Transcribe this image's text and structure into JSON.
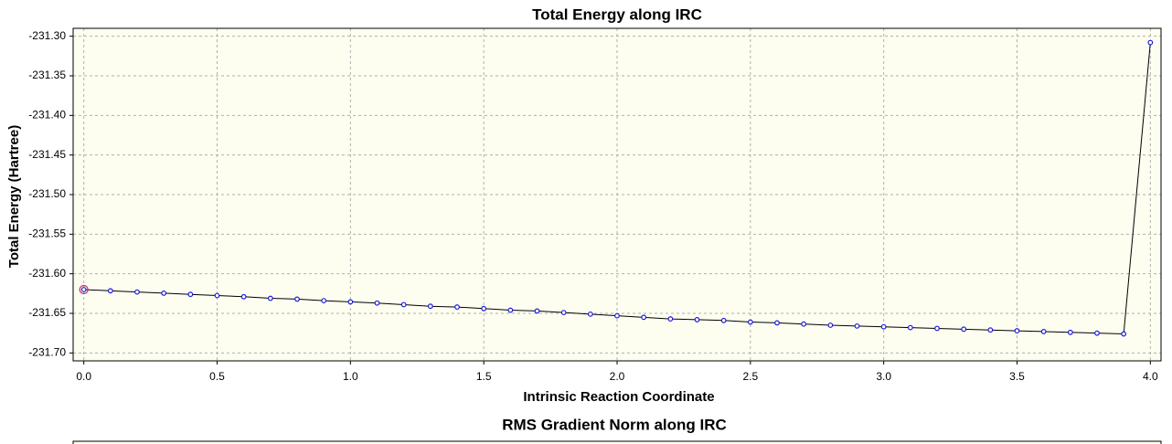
{
  "chart_data": {
    "type": "line",
    "title": "Total Energy along IRC",
    "x_label": "Intrinsic Reaction Coordinate",
    "y_label": "Total Energy (Hartree)",
    "x": [
      0,
      0.1,
      0.2,
      0.3,
      0.4,
      0.5,
      0.6,
      0.7,
      0.8,
      0.9,
      1.0,
      1.1,
      1.2,
      1.3,
      1.4,
      1.5,
      1.6,
      1.7,
      1.8,
      1.9,
      2.0,
      2.1,
      2.2,
      2.3,
      2.4,
      2.5,
      2.6,
      2.7,
      2.8,
      2.9,
      3.0,
      3.1,
      3.2,
      3.3,
      3.4,
      3.5,
      3.6,
      3.7,
      3.8,
      3.9,
      4.0
    ],
    "series": [
      {
        "color": "#000000",
        "marker_color": "#1a1adc",
        "values": [
          -231.62,
          -231.6215,
          -231.623,
          -231.6245,
          -231.626,
          -231.6275,
          -231.629,
          -231.631,
          -231.632,
          -231.634,
          -231.6355,
          -231.637,
          -231.639,
          -231.641,
          -231.642,
          -231.644,
          -231.646,
          -231.647,
          -231.649,
          -231.651,
          -231.653,
          -231.655,
          -231.657,
          -231.658,
          -231.659,
          -231.661,
          -231.662,
          -231.6635,
          -231.665,
          -231.666,
          -231.667,
          -231.668,
          -231.669,
          -231.67,
          -231.671,
          -231.672,
          -231.673,
          -231.674,
          -231.675,
          -231.676,
          -231.308
        ]
      }
    ],
    "highlighted_point": 0,
    "highlight_color": "#c0306a",
    "xlim": [
      -0.04,
      4.04
    ],
    "ylim": [
      -231.71,
      -231.29
    ],
    "xticks": [
      {
        "value": 0,
        "label": "0.0"
      },
      0.5,
      {
        "value": 1,
        "label": "1.0"
      },
      1.5,
      {
        "value": 2,
        "label": "2.0"
      },
      2.5,
      {
        "value": 3,
        "label": "3.0"
      },
      3.5,
      {
        "value": 4,
        "label": "4.0"
      }
    ],
    "yticks": [
      {
        "value": -231.7,
        "label": "-231.70"
      },
      -231.65,
      {
        "value": -231.6,
        "label": "-231.60"
      },
      -231.55,
      {
        "value": -231.5,
        "label": "-231.50"
      },
      -231.45,
      {
        "value": -231.4,
        "label": "-231.40"
      },
      -231.35,
      {
        "value": -231.3,
        "label": "-231.30"
      }
    ],
    "grid": true,
    "plot_background": "#fdfdf0"
  },
  "lower_panel_title": "RMS Gradient Norm along IRC"
}
